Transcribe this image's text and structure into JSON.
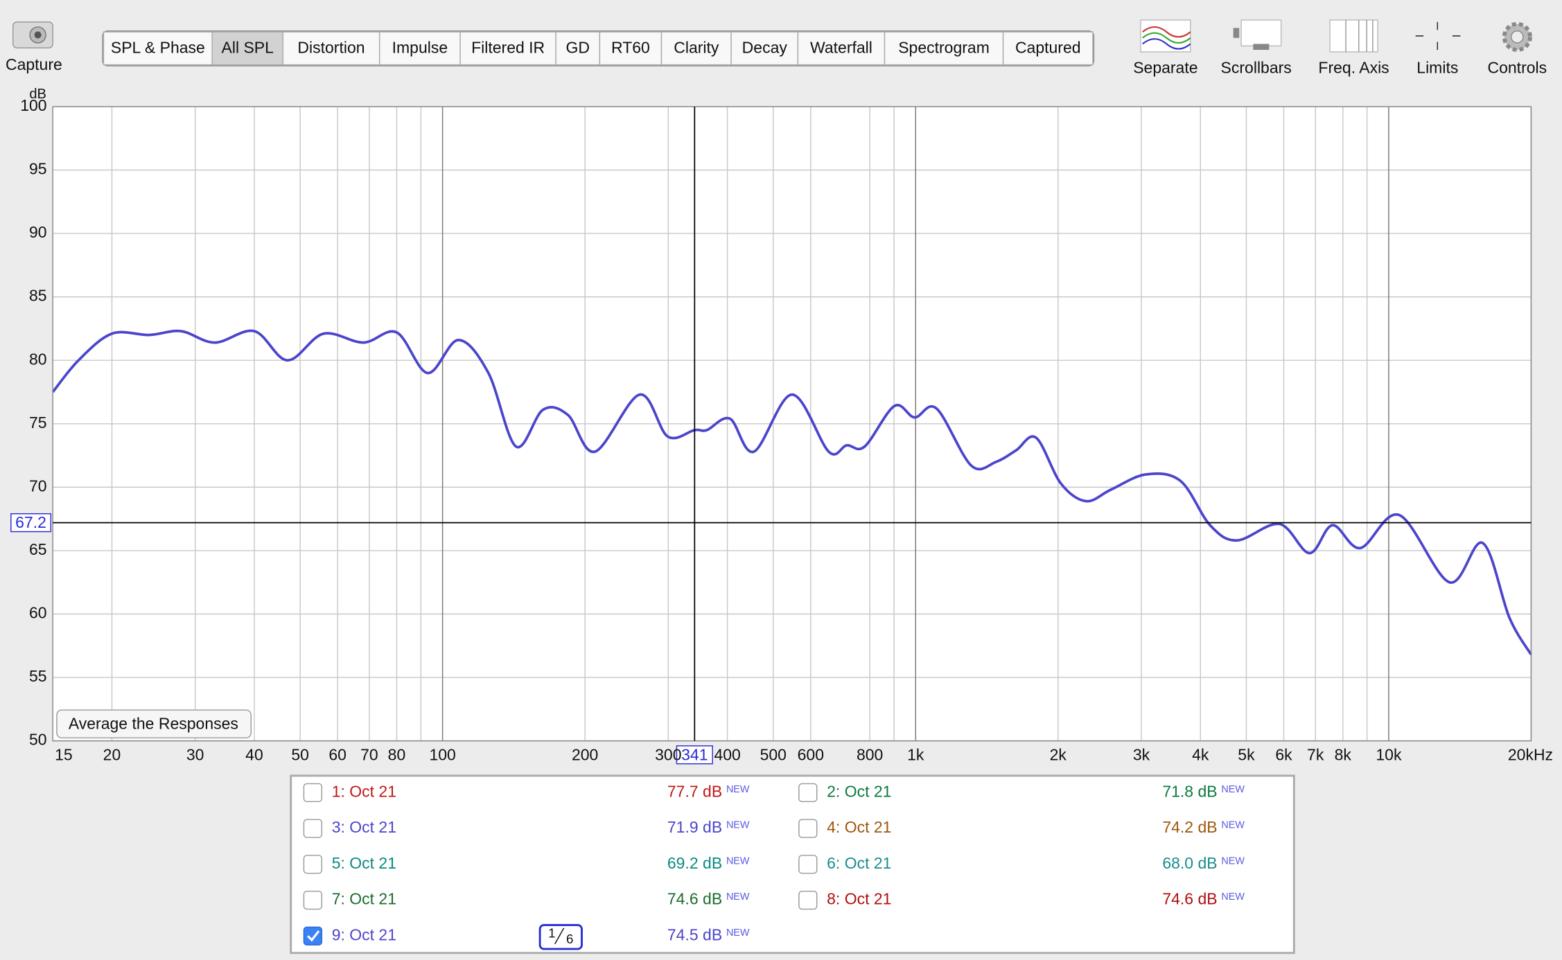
{
  "toolbar": {
    "capture": "Capture",
    "tabs": [
      "SPL & Phase",
      "All SPL",
      "Distortion",
      "Impulse",
      "Filtered IR",
      "GD",
      "RT60",
      "Clarity",
      "Decay",
      "Waterfall",
      "Spectrogram",
      "Captured"
    ],
    "selected_tab": 1,
    "tools": [
      "Separate",
      "Scrollbars",
      "Freq. Axis",
      "Limits",
      "Controls"
    ]
  },
  "chart_data": {
    "type": "line",
    "y_label": "dB",
    "x_log": true,
    "grid": true,
    "x": [
      15,
      17,
      20,
      24,
      28,
      33,
      40,
      47,
      56,
      68,
      80,
      93,
      108,
      125,
      143,
      163,
      184,
      210,
      261,
      299,
      341,
      362,
      405,
      455,
      548,
      655,
      715,
      780,
      902,
      995,
      1107,
      1311,
      1480,
      1630,
      1797,
      2027,
      2291,
      2586,
      3063,
      3628,
      4192,
      4778,
      5875,
      6802,
      7606,
      8710,
      10530,
      13440,
      15800,
      18000,
      20000
    ],
    "series": [
      {
        "color": "#4b45cc",
        "values": [
          77.5,
          80.0,
          82.1,
          82.0,
          82.3,
          81.4,
          82.3,
          80.0,
          82.1,
          81.4,
          82.2,
          79.0,
          81.6,
          79.0,
          73.2,
          76.1,
          75.7,
          72.8,
          77.3,
          74.0,
          74.5,
          74.5,
          75.4,
          72.8,
          77.3,
          72.8,
          73.3,
          73.2,
          76.4,
          75.5,
          76.2,
          71.7,
          72.0,
          72.9,
          73.9,
          70.3,
          68.9,
          69.8,
          71.0,
          70.5,
          67.0,
          65.8,
          67.1,
          64.8,
          67.0,
          65.2,
          67.8,
          62.5,
          65.6,
          59.7,
          56.8
        ]
      }
    ],
    "xlim": [
      15,
      20000
    ],
    "ylim": [
      50,
      100
    ],
    "xticks": [
      15,
      20,
      30,
      40,
      50,
      60,
      70,
      80,
      100,
      200,
      300,
      400,
      500,
      600,
      800,
      {
        "value": 1000,
        "label": "1k"
      },
      {
        "value": 2000,
        "label": "2k"
      },
      {
        "value": 3000,
        "label": "3k"
      },
      {
        "value": 4000,
        "label": "4k"
      },
      {
        "value": 5000,
        "label": "5k"
      },
      {
        "value": 6000,
        "label": "6k"
      },
      {
        "value": 7000,
        "label": "7k"
      },
      {
        "value": 8000,
        "label": "8k"
      },
      {
        "value": 10000,
        "label": "10k"
      },
      {
        "value": 20000,
        "label": "20kHz"
      }
    ],
    "xminor": [
      90,
      900,
      9000
    ],
    "major_x": [
      100,
      1000,
      10000
    ],
    "yticks": [
      50,
      55,
      60,
      65,
      70,
      75,
      80,
      85,
      90,
      95,
      100
    ],
    "cursor": {
      "x": 341,
      "y": 67.2
    },
    "button": "Average the Responses"
  },
  "legend": {
    "rows": [
      {
        "name": "1: Oct 21",
        "level": "77.7 dB",
        "tag": "NEW",
        "color": "#c01818",
        "checked": false
      },
      {
        "name": "2: Oct 21",
        "level": "71.8 dB",
        "tag": "NEW",
        "color": "#0c7a3c",
        "checked": false
      },
      {
        "name": "3: Oct 21",
        "level": "71.9 dB",
        "tag": "NEW",
        "color": "#4b45cc",
        "checked": false
      },
      {
        "name": "4: Oct 21",
        "level": "74.2 dB",
        "tag": "NEW",
        "color": "#a0560a",
        "checked": false
      },
      {
        "name": "5: Oct 21",
        "level": "69.2 dB",
        "tag": "NEW",
        "color": "#0a8a80",
        "checked": false
      },
      {
        "name": "6: Oct 21",
        "level": "68.0 dB",
        "tag": "NEW",
        "color": "#1a8c8c",
        "checked": false
      },
      {
        "name": "7: Oct 21",
        "level": "74.6 dB",
        "tag": "NEW",
        "color": "#1c6c2c",
        "checked": false
      },
      {
        "name": "8: Oct 21",
        "level": "74.6 dB",
        "tag": "NEW",
        "color": "#b00e0e",
        "checked": false
      },
      {
        "name": "9: Oct 21",
        "level": "74.5 dB",
        "tag": "NEW",
        "color": "#4b45cc",
        "checked": true
      }
    ],
    "smoothing": {
      "num": 1,
      "den": 6
    }
  }
}
